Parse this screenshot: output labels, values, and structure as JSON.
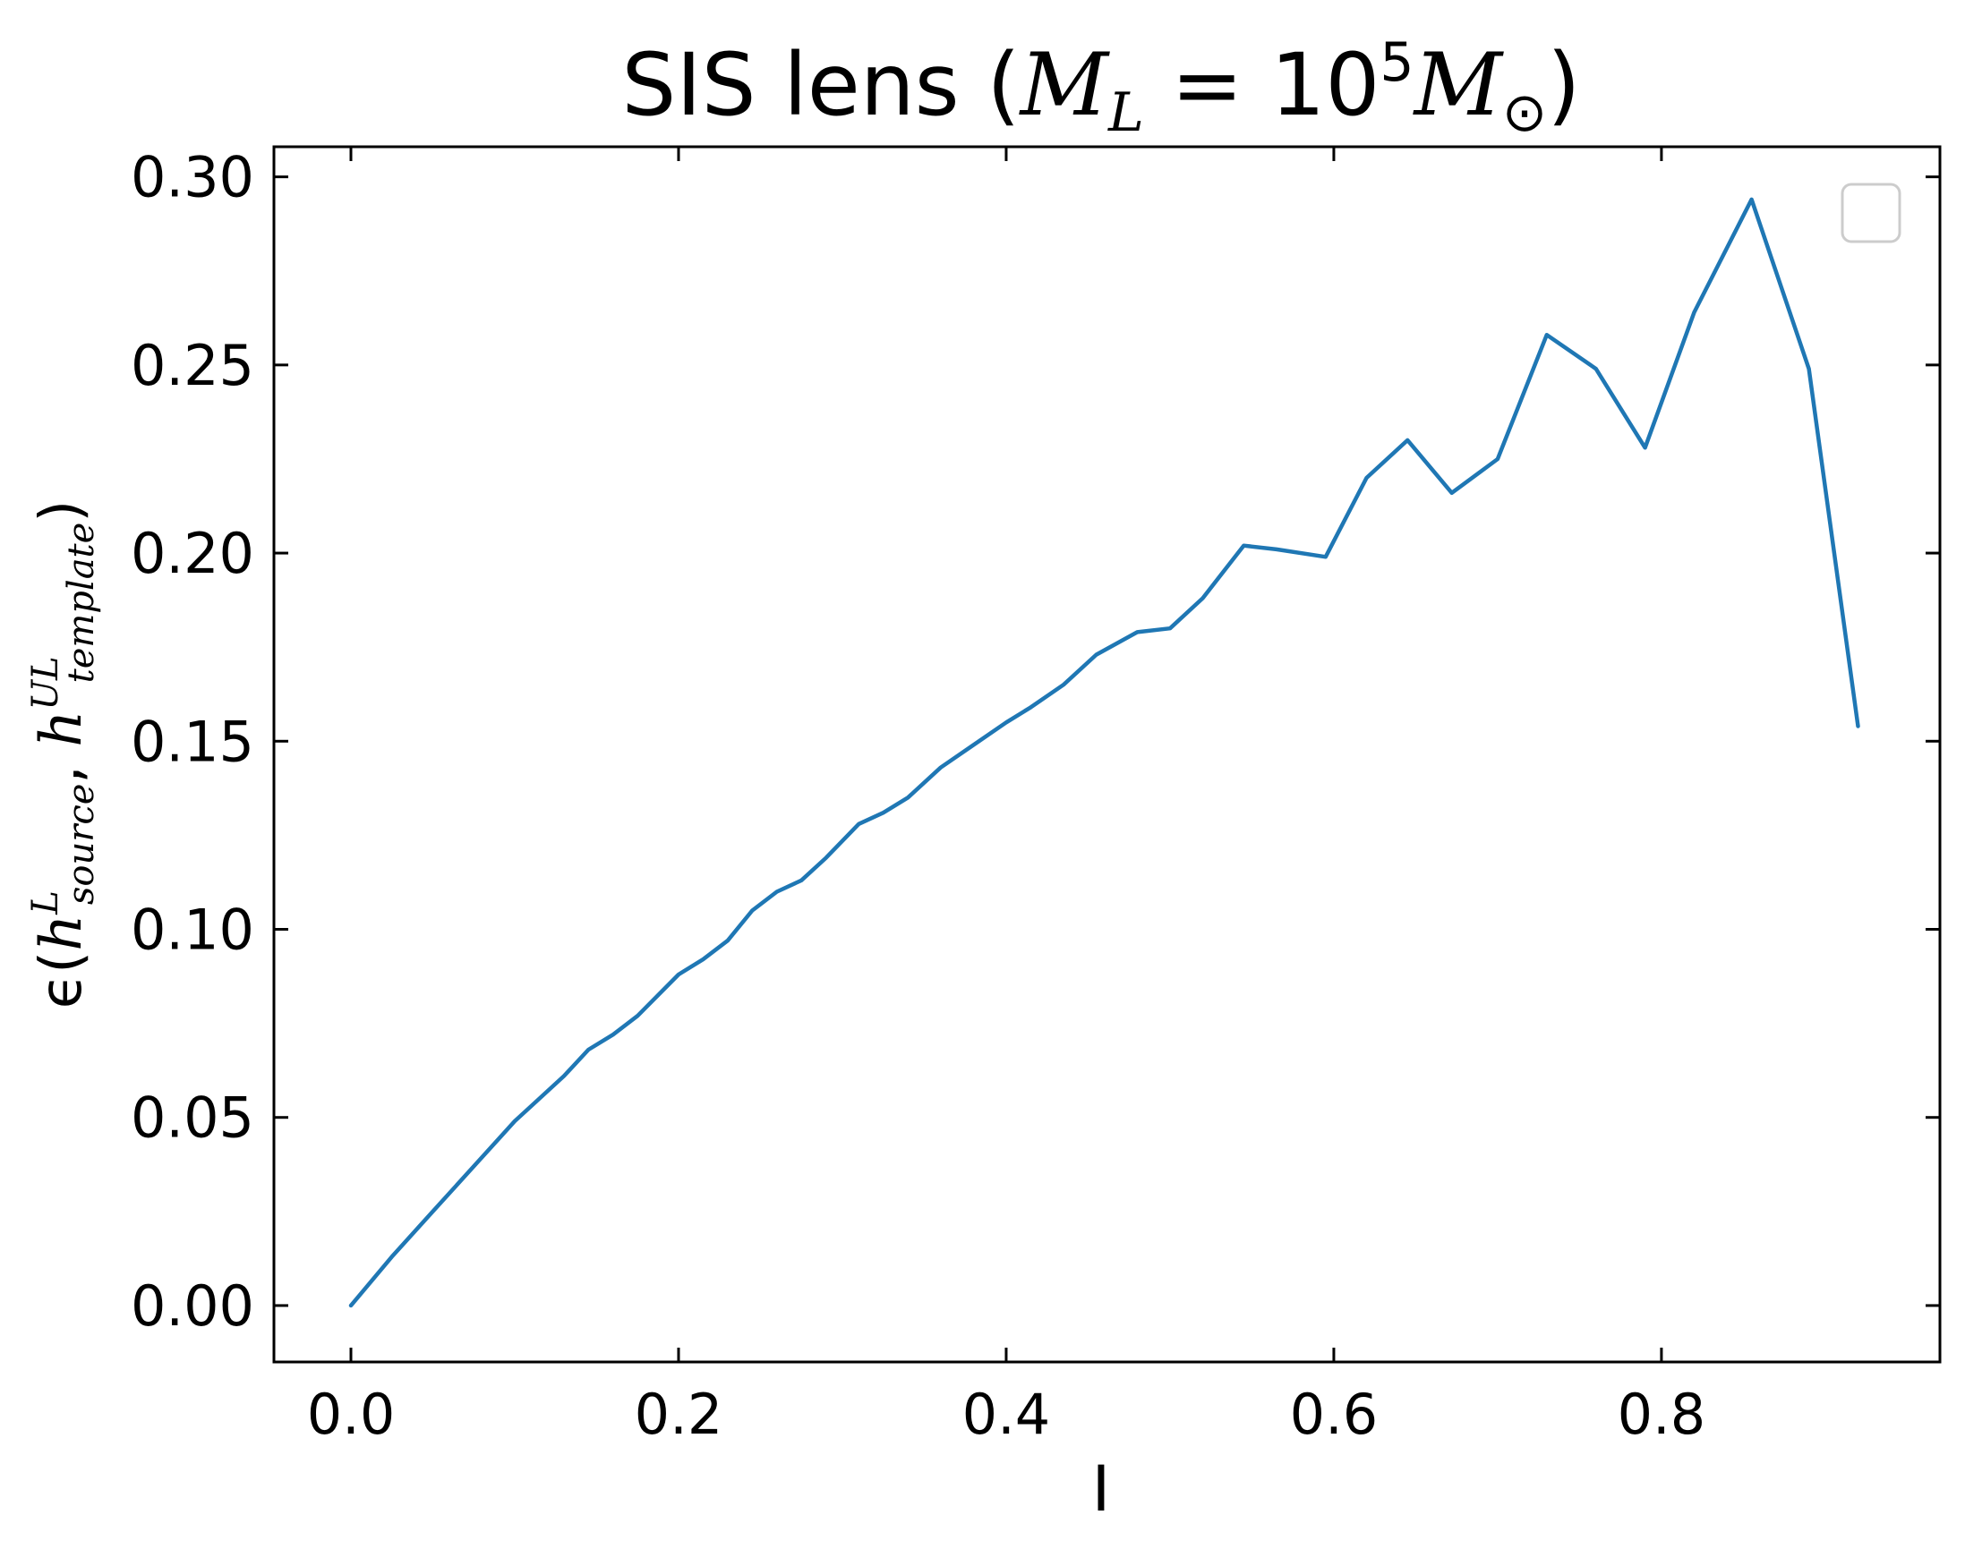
{
  "chart_data": {
    "type": "line",
    "title": {
      "prefix": "SIS lens (",
      "mass_symbol": "M",
      "mass_subscript": "L",
      "equals": " = 10",
      "exponent": "5",
      "solar_symbol": "M",
      "solar_subscript": "⊙",
      "suffix": ")"
    },
    "xlabel": "I",
    "ylabel": {
      "prefix": "ϵ(",
      "h1": "h",
      "h1_sup": "L",
      "h1_sub": "source",
      "comma": ", ",
      "h2": "h",
      "h2_sup": "UL",
      "h2_sub": "template",
      "suffix": ")"
    },
    "xlim": [
      -0.047,
      0.97
    ],
    "ylim": [
      -0.015,
      0.308
    ],
    "x_ticks": [
      0.0,
      0.2,
      0.4,
      0.6,
      0.8
    ],
    "x_tick_labels": [
      "0.0",
      "0.2",
      "0.4",
      "0.6",
      "0.8"
    ],
    "y_ticks": [
      0.0,
      0.05,
      0.1,
      0.15,
      0.2,
      0.25,
      0.3
    ],
    "y_tick_labels": [
      "0.00",
      "0.05",
      "0.10",
      "0.15",
      "0.20",
      "0.25",
      "0.30"
    ],
    "grid": false,
    "legend": {
      "placement": "top-right",
      "entries": []
    },
    "series": [
      {
        "color": "#1f77b4",
        "x": [
          0.0,
          0.025,
          0.05,
          0.075,
          0.1,
          0.11,
          0.13,
          0.145,
          0.16,
          0.175,
          0.2,
          0.215,
          0.23,
          0.245,
          0.26,
          0.275,
          0.29,
          0.31,
          0.325,
          0.34,
          0.36,
          0.38,
          0.4,
          0.415,
          0.435,
          0.455,
          0.48,
          0.5,
          0.52,
          0.545,
          0.565,
          0.595,
          0.62,
          0.645,
          0.672,
          0.7,
          0.73,
          0.76,
          0.79,
          0.82,
          0.855,
          0.89,
          0.92
        ],
        "y": [
          0.0,
          0.013,
          0.025,
          0.037,
          0.049,
          0.053,
          0.061,
          0.068,
          0.072,
          0.077,
          0.088,
          0.092,
          0.097,
          0.105,
          0.11,
          0.113,
          0.119,
          0.128,
          0.131,
          0.135,
          0.143,
          0.149,
          0.155,
          0.159,
          0.165,
          0.173,
          0.179,
          0.18,
          0.188,
          0.202,
          0.201,
          0.199,
          0.22,
          0.23,
          0.216,
          0.225,
          0.258,
          0.249,
          0.228,
          0.264,
          0.294,
          0.249,
          0.154
        ]
      }
    ]
  }
}
